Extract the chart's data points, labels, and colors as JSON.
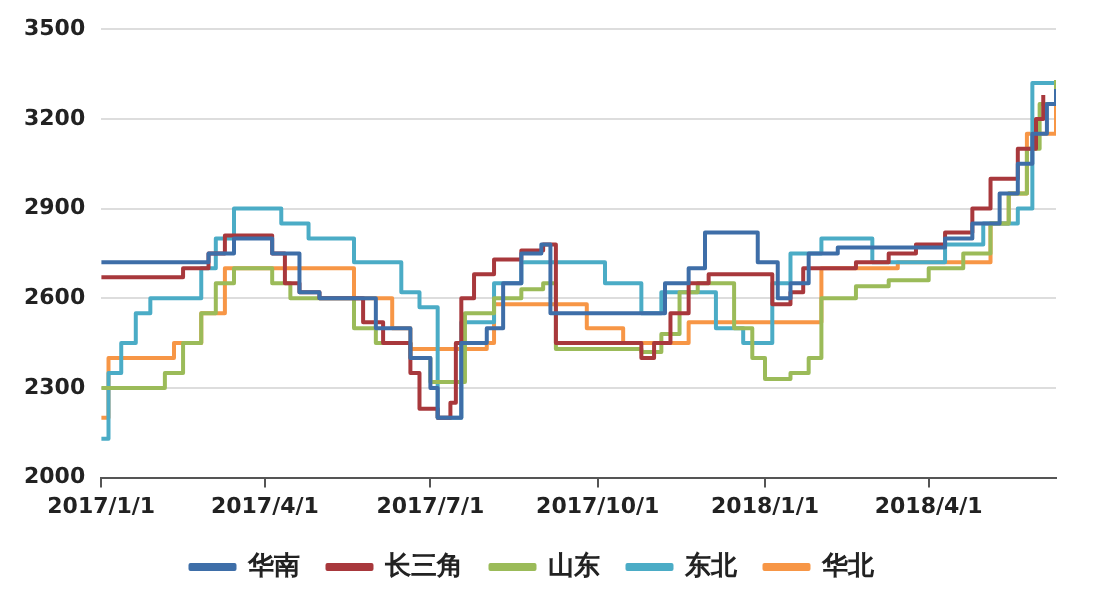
{
  "chart_data": {
    "type": "step",
    "legend": "bottom",
    "grid": "y",
    "marker": "none",
    "line_style": "solid",
    "ylim": [
      2000,
      3500
    ],
    "yticks": [
      2000,
      2300,
      2600,
      2900,
      3200,
      3500
    ],
    "xlim": [
      "2017-01-01",
      "2018-06-10"
    ],
    "xticks": [
      {
        "value": "2017-01-01",
        "label": "2017/1/1"
      },
      {
        "value": "2017-04-01",
        "label": "2017/4/1"
      },
      {
        "value": "2017-07-01",
        "label": "2017/7/1"
      },
      {
        "value": "2017-10-01",
        "label": "2017/10/1"
      },
      {
        "value": "2018-01-01",
        "label": "2018/1/1"
      },
      {
        "value": "2018-04-01",
        "label": "2018/4/1"
      }
    ],
    "series": [
      {
        "name": "华南",
        "color": "#3e6ea8",
        "x": [
          "2017-01-01",
          "2017-03-01",
          "2017-03-15",
          "2017-04-05",
          "2017-04-20",
          "2017-05-01",
          "2017-06-01",
          "2017-06-20",
          "2017-07-01",
          "2017-07-05",
          "2017-07-18",
          "2017-08-01",
          "2017-08-10",
          "2017-08-20",
          "2017-08-31",
          "2017-09-05",
          "2017-11-07",
          "2017-11-20",
          "2017-11-29",
          "2017-12-28",
          "2018-01-08",
          "2018-01-15",
          "2018-01-25",
          "2018-02-10",
          "2018-04-10",
          "2018-04-25",
          "2018-05-10",
          "2018-05-20",
          "2018-05-28",
          "2018-06-05",
          "2018-06-10"
        ],
        "values": [
          2720,
          2750,
          2800,
          2750,
          2620,
          2600,
          2500,
          2400,
          2300,
          2200,
          2450,
          2500,
          2650,
          2750,
          2780,
          2550,
          2650,
          2700,
          2820,
          2720,
          2600,
          2650,
          2750,
          2770,
          2800,
          2850,
          2950,
          3050,
          3150,
          3250,
          3300
        ]
      },
      {
        "name": "长三角",
        "color": "#a8383c",
        "x": [
          "2017-01-01",
          "2017-02-15",
          "2017-03-01",
          "2017-03-10",
          "2017-04-05",
          "2017-04-12",
          "2017-04-20",
          "2017-05-01",
          "2017-05-25",
          "2017-06-05",
          "2017-06-20",
          "2017-06-25",
          "2017-07-05",
          "2017-07-12",
          "2017-07-15",
          "2017-07-18",
          "2017-07-25",
          "2017-08-05",
          "2017-08-20",
          "2017-09-01",
          "2017-09-08",
          "2017-10-15",
          "2017-10-25",
          "2017-11-01",
          "2017-11-10",
          "2017-11-20",
          "2017-12-01",
          "2018-01-05",
          "2018-01-15",
          "2018-01-22",
          "2018-02-20",
          "2018-03-10",
          "2018-03-25",
          "2018-04-10",
          "2018-04-25",
          "2018-05-05",
          "2018-05-20",
          "2018-05-30",
          "2018-06-03"
        ],
        "values": [
          2670,
          2700,
          2750,
          2810,
          2750,
          2650,
          2620,
          2600,
          2520,
          2450,
          2350,
          2230,
          2200,
          2250,
          2450,
          2600,
          2680,
          2730,
          2760,
          2780,
          2450,
          2450,
          2400,
          2450,
          2550,
          2650,
          2680,
          2580,
          2620,
          2700,
          2720,
          2750,
          2780,
          2820,
          2900,
          3000,
          3100,
          3200,
          3280
        ]
      },
      {
        "name": "山东",
        "color": "#9bbb59",
        "x": [
          "2017-01-01",
          "2017-02-05",
          "2017-02-15",
          "2017-02-25",
          "2017-03-05",
          "2017-03-15",
          "2017-04-05",
          "2017-04-15",
          "2017-05-20",
          "2017-06-01",
          "2017-06-20",
          "2017-07-01",
          "2017-07-20",
          "2017-08-05",
          "2017-08-20",
          "2017-09-01",
          "2017-09-08",
          "2017-10-25",
          "2017-11-05",
          "2017-11-15",
          "2017-11-25",
          "2017-12-15",
          "2017-12-25",
          "2018-01-01",
          "2018-01-15",
          "2018-01-25",
          "2018-02-01",
          "2018-02-20",
          "2018-03-10",
          "2018-04-01",
          "2018-04-20",
          "2018-05-05",
          "2018-05-15",
          "2018-05-25",
          "2018-06-01",
          "2018-06-10"
        ],
        "values": [
          2300,
          2350,
          2450,
          2550,
          2650,
          2700,
          2650,
          2600,
          2500,
          2450,
          2400,
          2320,
          2550,
          2600,
          2630,
          2650,
          2430,
          2420,
          2480,
          2620,
          2650,
          2500,
          2400,
          2330,
          2350,
          2400,
          2600,
          2640,
          2660,
          2700,
          2750,
          2850,
          2950,
          3100,
          3250,
          3330
        ]
      },
      {
        "name": "东北",
        "color": "#4bacc6",
        "x": [
          "2017-01-01",
          "2017-01-05",
          "2017-01-12",
          "2017-01-20",
          "2017-01-28",
          "2017-02-25",
          "2017-03-05",
          "2017-03-15",
          "2017-04-10",
          "2017-04-25",
          "2017-05-20",
          "2017-06-15",
          "2017-06-25",
          "2017-07-05",
          "2017-07-18",
          "2017-08-05",
          "2017-08-20",
          "2017-10-05",
          "2017-10-25",
          "2017-11-05",
          "2017-12-05",
          "2017-12-20",
          "2018-01-05",
          "2018-01-15",
          "2018-02-01",
          "2018-03-01",
          "2018-04-10",
          "2018-05-01",
          "2018-05-20",
          "2018-05-28",
          "2018-06-10"
        ],
        "values": [
          2130,
          2350,
          2450,
          2550,
          2600,
          2700,
          2800,
          2900,
          2850,
          2800,
          2720,
          2620,
          2570,
          2200,
          2520,
          2650,
          2720,
          2650,
          2550,
          2620,
          2500,
          2450,
          2650,
          2750,
          2800,
          2720,
          2780,
          2850,
          2900,
          3320,
          3320
        ]
      },
      {
        "name": "华北",
        "color": "#f79646",
        "x": [
          "2017-01-01",
          "2017-01-05",
          "2017-02-10",
          "2017-02-25",
          "2017-03-10",
          "2017-05-20",
          "2017-06-10",
          "2017-06-20",
          "2017-08-01",
          "2017-08-05",
          "2017-09-25",
          "2017-10-15",
          "2017-11-20",
          "2018-01-20",
          "2018-02-01",
          "2018-03-15",
          "2018-04-20",
          "2018-05-05",
          "2018-05-15",
          "2018-05-25",
          "2018-06-10"
        ],
        "values": [
          2200,
          2400,
          2450,
          2550,
          2700,
          2600,
          2500,
          2430,
          2450,
          2580,
          2500,
          2450,
          2520,
          2520,
          2700,
          2720,
          2720,
          2850,
          2950,
          3150,
          3280
        ]
      }
    ]
  }
}
